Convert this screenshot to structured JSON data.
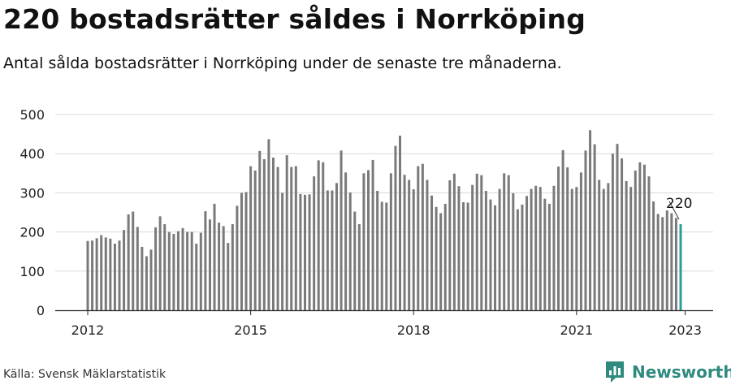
{
  "header": {
    "title": "220 bostadsrätter såldes i Norrköping",
    "subtitle": "Antal sålda bostadsrätter i Norrköping under de senaste tre månaderna."
  },
  "footer": {
    "source": "Källa: Svensk Mäklarstatistik",
    "brand": "Newsworthy"
  },
  "colors": {
    "bar": "#7a7a7a",
    "highlight": "#2a9d9a",
    "brand": "#2f8a7f"
  },
  "chart_data": {
    "type": "bar",
    "title": "",
    "xlabel": "",
    "ylabel": "",
    "ylim": [
      0,
      500
    ],
    "yticks": [
      0,
      100,
      200,
      300,
      400,
      500
    ],
    "xticks": [
      "2012",
      "2015",
      "2018",
      "2021",
      "2023"
    ],
    "grid": true,
    "period": "Jan 2012 – Jan 2023, monthly",
    "highlight_label": "220",
    "values": [
      177,
      178,
      184,
      192,
      186,
      183,
      170,
      178,
      205,
      245,
      252,
      213,
      162,
      138,
      155,
      212,
      240,
      220,
      200,
      195,
      202,
      210,
      200,
      200,
      170,
      198,
      253,
      232,
      272,
      224,
      215,
      172,
      220,
      267,
      300,
      302,
      368,
      357,
      407,
      386,
      437,
      390,
      366,
      300,
      396,
      366,
      368,
      297,
      295,
      296,
      342,
      383,
      378,
      306,
      306,
      325,
      408,
      352,
      301,
      252,
      220,
      350,
      358,
      384,
      305,
      277,
      275,
      350,
      420,
      446,
      346,
      333,
      309,
      368,
      374,
      333,
      293,
      264,
      248,
      272,
      332,
      349,
      317,
      276,
      275,
      320,
      349,
      345,
      305,
      283,
      268,
      310,
      350,
      345,
      299,
      258,
      270,
      292,
      310,
      318,
      315,
      285,
      272,
      318,
      367,
      409,
      365,
      310,
      315,
      352,
      408,
      460,
      424,
      333,
      310,
      325,
      400,
      425,
      388,
      330,
      315,
      357,
      378,
      372,
      342,
      278,
      246,
      238,
      255,
      248,
      236,
      220
    ]
  }
}
